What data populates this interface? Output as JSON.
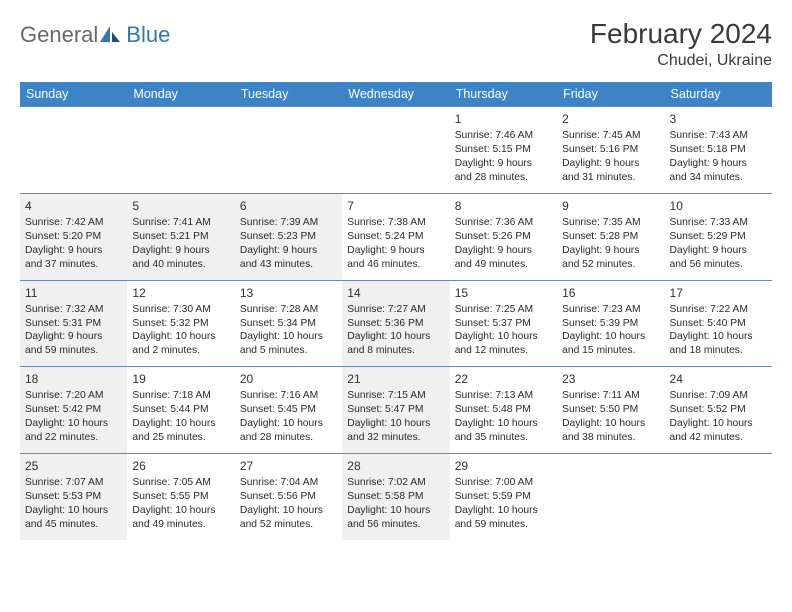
{
  "brand": {
    "general": "General",
    "blue": "Blue"
  },
  "header": {
    "month_title": "February 2024",
    "location": "Chudei, Ukraine"
  },
  "colors": {
    "header_bg": "#3d84c6",
    "header_text": "#ffffff",
    "border": "#6b8bae",
    "shaded_bg": "#f0f0f0",
    "brand_gray": "#696969",
    "brand_blue": "#2f77b5"
  },
  "dow": [
    "Sunday",
    "Monday",
    "Tuesday",
    "Wednesday",
    "Thursday",
    "Friday",
    "Saturday"
  ],
  "weeks": [
    [
      {
        "shaded": false
      },
      {
        "shaded": false
      },
      {
        "shaded": false
      },
      {
        "shaded": false
      },
      {
        "num": "1",
        "shaded": false,
        "sunrise": "Sunrise: 7:46 AM",
        "sunset": "Sunset: 5:15 PM",
        "day1": "Daylight: 9 hours",
        "day2": "and 28 minutes."
      },
      {
        "num": "2",
        "shaded": false,
        "sunrise": "Sunrise: 7:45 AM",
        "sunset": "Sunset: 5:16 PM",
        "day1": "Daylight: 9 hours",
        "day2": "and 31 minutes."
      },
      {
        "num": "3",
        "shaded": false,
        "sunrise": "Sunrise: 7:43 AM",
        "sunset": "Sunset: 5:18 PM",
        "day1": "Daylight: 9 hours",
        "day2": "and 34 minutes."
      }
    ],
    [
      {
        "num": "4",
        "shaded": true,
        "sunrise": "Sunrise: 7:42 AM",
        "sunset": "Sunset: 5:20 PM",
        "day1": "Daylight: 9 hours",
        "day2": "and 37 minutes."
      },
      {
        "num": "5",
        "shaded": true,
        "sunrise": "Sunrise: 7:41 AM",
        "sunset": "Sunset: 5:21 PM",
        "day1": "Daylight: 9 hours",
        "day2": "and 40 minutes."
      },
      {
        "num": "6",
        "shaded": true,
        "sunrise": "Sunrise: 7:39 AM",
        "sunset": "Sunset: 5:23 PM",
        "day1": "Daylight: 9 hours",
        "day2": "and 43 minutes."
      },
      {
        "num": "7",
        "shaded": false,
        "sunrise": "Sunrise: 7:38 AM",
        "sunset": "Sunset: 5:24 PM",
        "day1": "Daylight: 9 hours",
        "day2": "and 46 minutes."
      },
      {
        "num": "8",
        "shaded": false,
        "sunrise": "Sunrise: 7:36 AM",
        "sunset": "Sunset: 5:26 PM",
        "day1": "Daylight: 9 hours",
        "day2": "and 49 minutes."
      },
      {
        "num": "9",
        "shaded": false,
        "sunrise": "Sunrise: 7:35 AM",
        "sunset": "Sunset: 5:28 PM",
        "day1": "Daylight: 9 hours",
        "day2": "and 52 minutes."
      },
      {
        "num": "10",
        "shaded": false,
        "sunrise": "Sunrise: 7:33 AM",
        "sunset": "Sunset: 5:29 PM",
        "day1": "Daylight: 9 hours",
        "day2": "and 56 minutes."
      }
    ],
    [
      {
        "num": "11",
        "shaded": true,
        "sunrise": "Sunrise: 7:32 AM",
        "sunset": "Sunset: 5:31 PM",
        "day1": "Daylight: 9 hours",
        "day2": "and 59 minutes."
      },
      {
        "num": "12",
        "shaded": false,
        "sunrise": "Sunrise: 7:30 AM",
        "sunset": "Sunset: 5:32 PM",
        "day1": "Daylight: 10 hours",
        "day2": "and 2 minutes."
      },
      {
        "num": "13",
        "shaded": false,
        "sunrise": "Sunrise: 7:28 AM",
        "sunset": "Sunset: 5:34 PM",
        "day1": "Daylight: 10 hours",
        "day2": "and 5 minutes."
      },
      {
        "num": "14",
        "shaded": true,
        "sunrise": "Sunrise: 7:27 AM",
        "sunset": "Sunset: 5:36 PM",
        "day1": "Daylight: 10 hours",
        "day2": "and 8 minutes."
      },
      {
        "num": "15",
        "shaded": false,
        "sunrise": "Sunrise: 7:25 AM",
        "sunset": "Sunset: 5:37 PM",
        "day1": "Daylight: 10 hours",
        "day2": "and 12 minutes."
      },
      {
        "num": "16",
        "shaded": false,
        "sunrise": "Sunrise: 7:23 AM",
        "sunset": "Sunset: 5:39 PM",
        "day1": "Daylight: 10 hours",
        "day2": "and 15 minutes."
      },
      {
        "num": "17",
        "shaded": false,
        "sunrise": "Sunrise: 7:22 AM",
        "sunset": "Sunset: 5:40 PM",
        "day1": "Daylight: 10 hours",
        "day2": "and 18 minutes."
      }
    ],
    [
      {
        "num": "18",
        "shaded": true,
        "sunrise": "Sunrise: 7:20 AM",
        "sunset": "Sunset: 5:42 PM",
        "day1": "Daylight: 10 hours",
        "day2": "and 22 minutes."
      },
      {
        "num": "19",
        "shaded": false,
        "sunrise": "Sunrise: 7:18 AM",
        "sunset": "Sunset: 5:44 PM",
        "day1": "Daylight: 10 hours",
        "day2": "and 25 minutes."
      },
      {
        "num": "20",
        "shaded": false,
        "sunrise": "Sunrise: 7:16 AM",
        "sunset": "Sunset: 5:45 PM",
        "day1": "Daylight: 10 hours",
        "day2": "and 28 minutes."
      },
      {
        "num": "21",
        "shaded": true,
        "sunrise": "Sunrise: 7:15 AM",
        "sunset": "Sunset: 5:47 PM",
        "day1": "Daylight: 10 hours",
        "day2": "and 32 minutes."
      },
      {
        "num": "22",
        "shaded": false,
        "sunrise": "Sunrise: 7:13 AM",
        "sunset": "Sunset: 5:48 PM",
        "day1": "Daylight: 10 hours",
        "day2": "and 35 minutes."
      },
      {
        "num": "23",
        "shaded": false,
        "sunrise": "Sunrise: 7:11 AM",
        "sunset": "Sunset: 5:50 PM",
        "day1": "Daylight: 10 hours",
        "day2": "and 38 minutes."
      },
      {
        "num": "24",
        "shaded": false,
        "sunrise": "Sunrise: 7:09 AM",
        "sunset": "Sunset: 5:52 PM",
        "day1": "Daylight: 10 hours",
        "day2": "and 42 minutes."
      }
    ],
    [
      {
        "num": "25",
        "shaded": true,
        "sunrise": "Sunrise: 7:07 AM",
        "sunset": "Sunset: 5:53 PM",
        "day1": "Daylight: 10 hours",
        "day2": "and 45 minutes."
      },
      {
        "num": "26",
        "shaded": false,
        "sunrise": "Sunrise: 7:05 AM",
        "sunset": "Sunset: 5:55 PM",
        "day1": "Daylight: 10 hours",
        "day2": "and 49 minutes."
      },
      {
        "num": "27",
        "shaded": false,
        "sunrise": "Sunrise: 7:04 AM",
        "sunset": "Sunset: 5:56 PM",
        "day1": "Daylight: 10 hours",
        "day2": "and 52 minutes."
      },
      {
        "num": "28",
        "shaded": true,
        "sunrise": "Sunrise: 7:02 AM",
        "sunset": "Sunset: 5:58 PM",
        "day1": "Daylight: 10 hours",
        "day2": "and 56 minutes."
      },
      {
        "num": "29",
        "shaded": false,
        "sunrise": "Sunrise: 7:00 AM",
        "sunset": "Sunset: 5:59 PM",
        "day1": "Daylight: 10 hours",
        "day2": "and 59 minutes."
      },
      {
        "shaded": false
      },
      {
        "shaded": false
      }
    ]
  ]
}
